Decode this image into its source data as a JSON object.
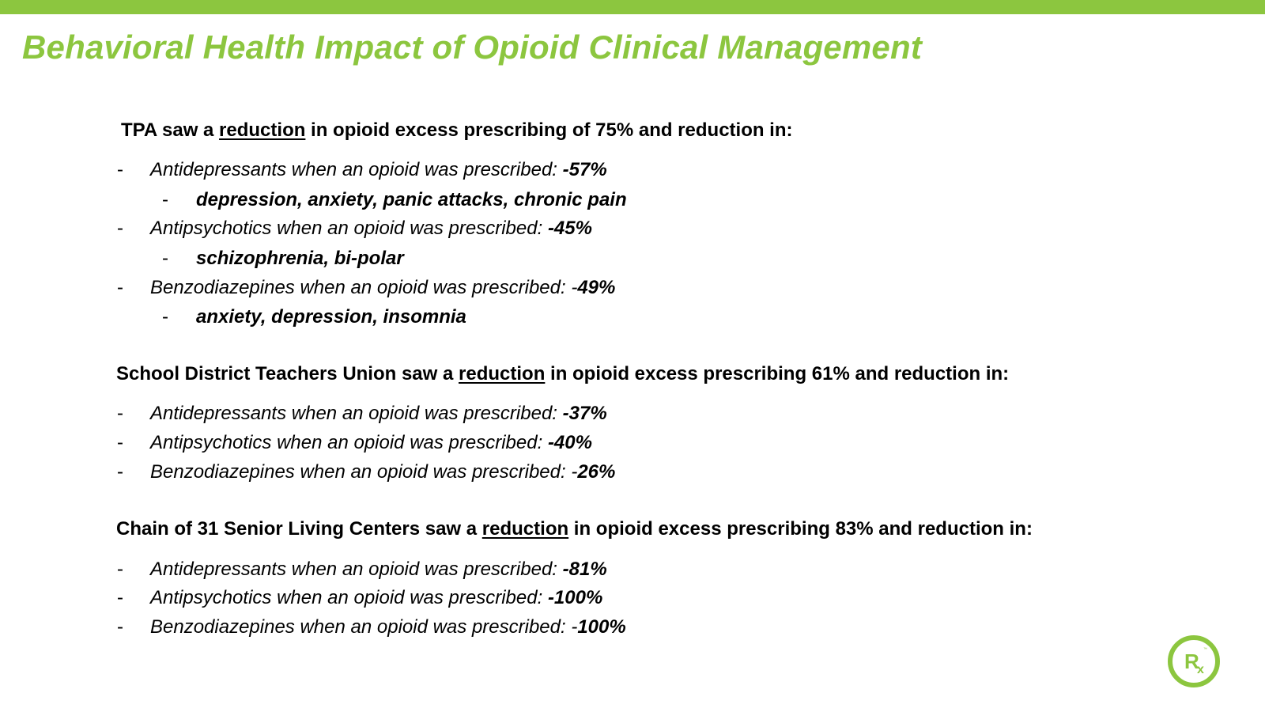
{
  "title": "Behavioral Health Impact of Opioid Clinical Management",
  "sections": [
    {
      "heading_pre": "TPA saw a ",
      "heading_underlined": "reduction",
      "heading_post": " in opioid excess prescribing of 75% and reduction in:",
      "items": [
        {
          "text": "Antidepressants when an opioid was prescribed: ",
          "value": "-57%"
        },
        {
          "sub": "depression, anxiety, panic attacks, chronic pain"
        },
        {
          "text": "Antipsychotics when an opioid was prescribed: ",
          "value": "-45%"
        },
        {
          "sub": "schizophrenia, bi-polar"
        },
        {
          "text": "Benzodiazepines when an opioid was prescribed: -",
          "value": "49%"
        },
        {
          "sub": "anxiety, depression, insomnia"
        }
      ]
    },
    {
      "heading_pre": "School District Teachers Union saw a ",
      "heading_underlined": "reduction",
      "heading_post": " in opioid excess prescribing 61% and reduction in:",
      "items": [
        {
          "text": "Antidepressants when an opioid was prescribed: ",
          "value": "-37%"
        },
        {
          "text": "Antipsychotics when an opioid was prescribed: ",
          "value": "-40%"
        },
        {
          "text": "Benzodiazepines when an opioid was prescribed: -",
          "value": "26%"
        }
      ]
    },
    {
      "heading_pre": "Chain of 31 Senior Living Centers saw a ",
      "heading_underlined": "reduction",
      "heading_post": " in opioid excess prescribing 83% and reduction in:",
      "items": [
        {
          "text": "Antidepressants when an opioid was prescribed: ",
          "value": "-81%"
        },
        {
          "text": "Antipsychotics when an opioid was prescribed: ",
          "value": "-100%"
        },
        {
          "text": "Benzodiazepines when an opioid was prescribed: -",
          "value": "100%"
        }
      ]
    }
  ],
  "bullet": "-",
  "logo": {
    "text": "Rx",
    "icon": "rx-logo-icon",
    "color": "#8cc63f"
  },
  "colors": {
    "accent": "#8cc63f",
    "text": "#000000"
  }
}
